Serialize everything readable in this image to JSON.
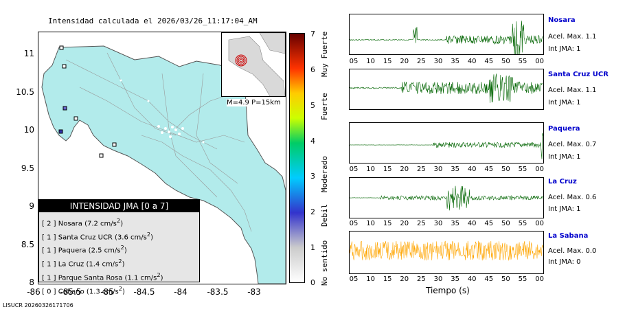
{
  "title": "Intensidad calculada el 2026/03/26_11:17:04_AM",
  "map": {
    "y_ticks": [
      "11",
      "10.5",
      "10",
      "9.5",
      "9",
      "8.5",
      "8"
    ],
    "x_ticks": [
      "-86",
      "-85.5",
      "-85",
      "-84.5",
      "-84",
      "-83.5",
      "-83"
    ],
    "land_color": "#b2ebeb",
    "inset_label": "M=4.9 P=15km"
  },
  "legend": {
    "title": "INTENSIDAD JMA [0 a 7]",
    "items": [
      {
        "level": "[ 2 ]",
        "text": "Nosara (7.2 cm/s",
        "sup": "2",
        "tail": ")"
      },
      {
        "level": "[ 1 ]",
        "text": "Santa Cruz UCR (3.6 cm/s",
        "sup": "2",
        "tail": ")"
      },
      {
        "level": "[ 1 ]",
        "text": "Paquera (2.5 cm/s",
        "sup": "2",
        "tail": ")"
      },
      {
        "level": "[ 1 ]",
        "text": "La Cruz (1.4 cm/s",
        "sup": "2",
        "tail": ")"
      },
      {
        "level": "[ 1 ]",
        "text": "Parque Santa Rosa (1.1 cm/s",
        "sup": "2",
        "tail": ")"
      },
      {
        "level": "[ 0 ]",
        "text": "Cobano (1.3 cm/s",
        "sup": "2",
        "tail": ")"
      }
    ]
  },
  "colorbar": {
    "ticks": [
      "7",
      "6",
      "5",
      "4",
      "3",
      "2",
      "1",
      "0"
    ],
    "words": [
      "Muy Fuerte",
      "Fuerte",
      "Moderado",
      "Debil",
      "No sentido"
    ]
  },
  "waveforms": {
    "time_ticks": [
      "05",
      "10",
      "15",
      "20",
      "25",
      "30",
      "35",
      "40",
      "45",
      "50",
      "55",
      "00"
    ],
    "xlabel": "Tiempo (s)",
    "stations": [
      {
        "name": "Nosara",
        "accel": "Acel. Max. 1.1",
        "jma": "Int JMA: 1",
        "color": "#006400"
      },
      {
        "name": "Santa Cruz UCR",
        "accel": "Acel. Max. 1.1",
        "jma": "Int JMA: 1",
        "color": "#006400"
      },
      {
        "name": "Paquera",
        "accel": "Acel. Max. 0.7",
        "jma": "Int JMA: 1",
        "color": "#006400"
      },
      {
        "name": "La Cruz",
        "accel": "Acel. Max. 0.6",
        "jma": "Int JMA: 1",
        "color": "#006400"
      },
      {
        "name": "La Sabana",
        "accel": "Acel. Max. 0.0",
        "jma": "Int JMA: 0",
        "color": "#ffa500"
      }
    ]
  },
  "footer": "LISUCR 20260326171706"
}
